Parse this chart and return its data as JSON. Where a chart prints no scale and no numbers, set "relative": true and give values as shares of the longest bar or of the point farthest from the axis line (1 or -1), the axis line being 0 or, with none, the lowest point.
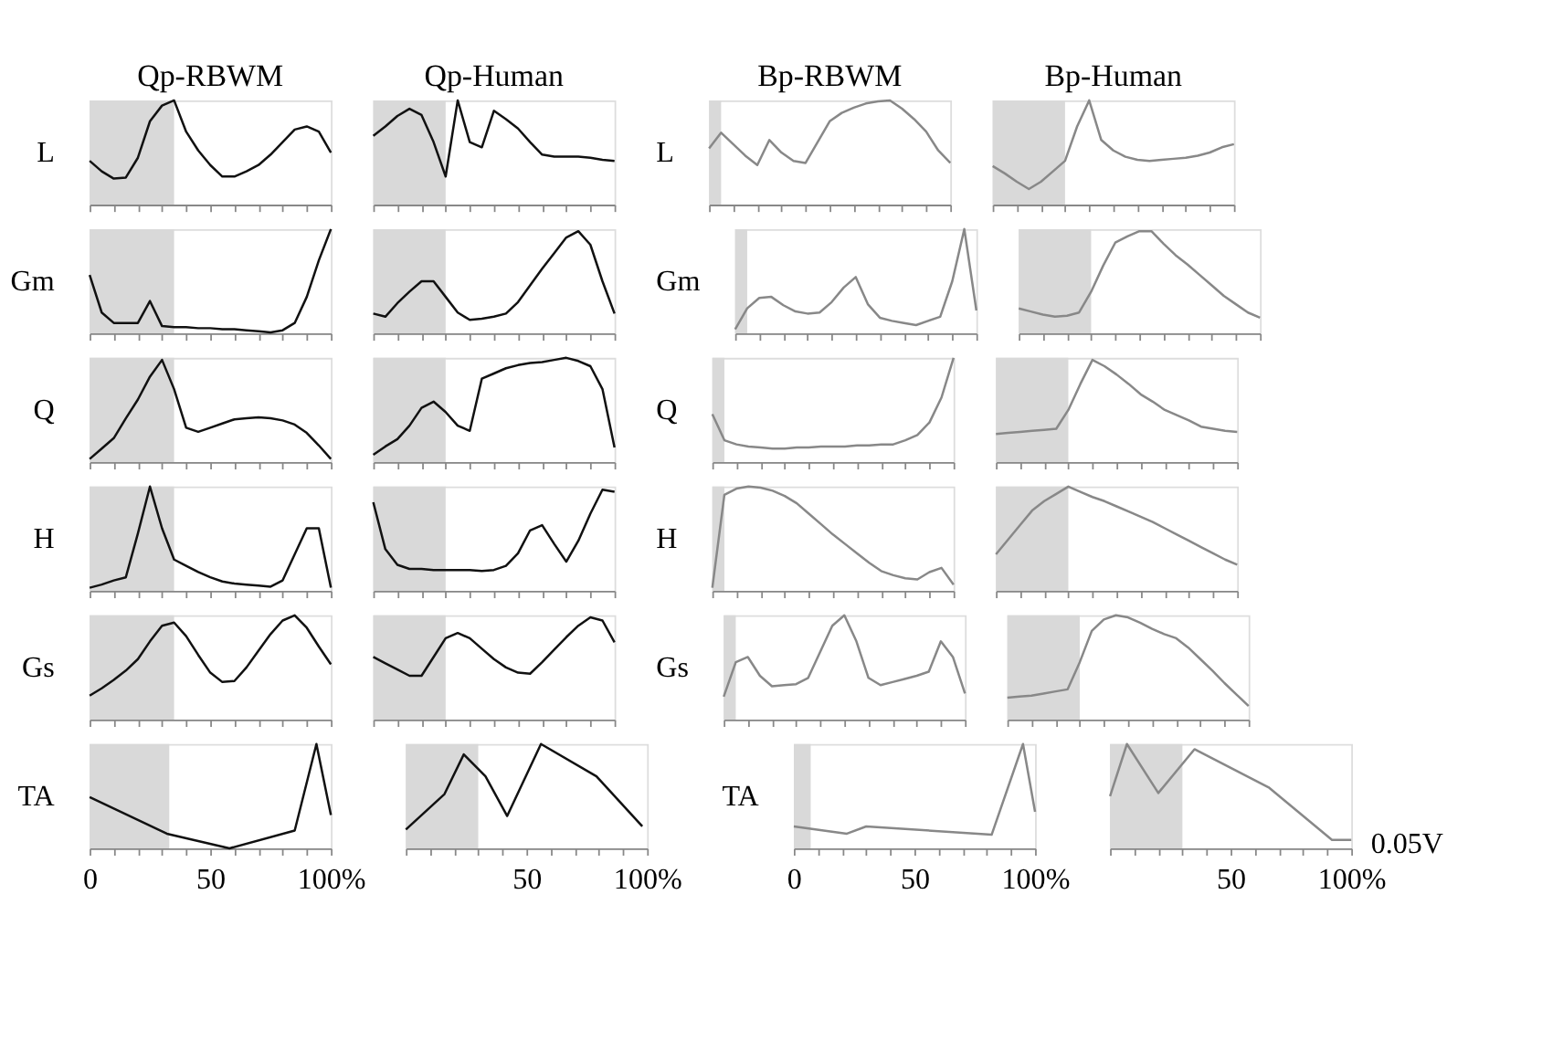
{
  "chart_data": [
    {
      "type": "line",
      "title": "Qp-RBWM",
      "ylabel": "L",
      "relative": true,
      "categories": [
        null,
        null,
        null,
        null,
        null,
        null,
        null,
        null,
        null,
        null,
        null,
        null,
        null,
        null,
        null,
        null,
        null,
        null,
        null,
        null,
        null
      ],
      "tick_labels": false,
      "series": [
        {
          "type": "area",
          "color": "#d9d9d9",
          "values": [
            1,
            1,
            1,
            1,
            1,
            1,
            1,
            1,
            null,
            null,
            null,
            null,
            null,
            null,
            null,
            null,
            null,
            null,
            null,
            null,
            null
          ]
        },
        {
          "color": "#111111",
          "values": [
            0.42,
            0.32,
            0.25,
            0.26,
            0.45,
            0.8,
            0.95,
            1,
            0.7,
            0.52,
            0.38,
            0.27,
            0.27,
            0.32,
            0.38,
            0.48,
            0.6,
            0.72,
            0.75,
            0.7,
            0.5
          ]
        }
      ]
    },
    {
      "type": "line",
      "title": "Qp-Human",
      "relative": true,
      "categories": [
        null,
        null,
        null,
        null,
        null,
        null,
        null,
        null,
        null,
        null,
        null,
        null,
        null,
        null,
        null,
        null,
        null,
        null,
        null,
        null,
        null
      ],
      "tick_labels": false,
      "series": [
        {
          "type": "area",
          "color": "#d9d9d9",
          "values": [
            1,
            1,
            1,
            1,
            1,
            1,
            1,
            null,
            null,
            null,
            null,
            null,
            null,
            null,
            null,
            null,
            null,
            null,
            null,
            null,
            null
          ]
        },
        {
          "color": "#111111",
          "values": [
            0.66,
            0.75,
            0.85,
            0.92,
            0.86,
            0.6,
            0.27,
            1,
            0.6,
            0.55,
            0.9,
            0.82,
            0.73,
            0.6,
            0.48,
            0.46,
            0.46,
            0.46,
            0.45,
            0.43,
            0.42
          ]
        }
      ]
    },
    {
      "type": "line",
      "title": "Bp-RBWM",
      "ylabel": "L",
      "relative": true,
      "categories": [
        null,
        null,
        null,
        null,
        null,
        null,
        null,
        null,
        null,
        null,
        null,
        null,
        null,
        null,
        null,
        null,
        null,
        null,
        null,
        null,
        null
      ],
      "tick_labels": false,
      "series": [
        {
          "type": "area",
          "color": "#d9d9d9",
          "values": [
            1,
            1,
            null,
            null,
            null,
            null,
            null,
            null,
            null,
            null,
            null,
            null,
            null,
            null,
            null,
            null,
            null,
            null,
            null,
            null,
            null
          ]
        },
        {
          "color": "#888888",
          "values": [
            0.54,
            0.69,
            0.58,
            0.47,
            0.38,
            0.62,
            0.5,
            0.42,
            0.4,
            0.6,
            0.8,
            0.88,
            0.93,
            0.97,
            0.99,
            1,
            0.92,
            0.82,
            0.7,
            0.52,
            0.4
          ]
        }
      ]
    },
    {
      "type": "line",
      "title": "Bp-Human",
      "relative": true,
      "categories": [
        null,
        null,
        null,
        null,
        null,
        null,
        null,
        null,
        null,
        null,
        null,
        null,
        null,
        null,
        null,
        null,
        null,
        null,
        null,
        null,
        null
      ],
      "tick_labels": false,
      "series": [
        {
          "type": "area",
          "color": "#d9d9d9",
          "values": [
            1,
            1,
            1,
            1,
            1,
            1,
            1,
            null,
            null,
            null,
            null,
            null,
            null,
            null,
            null,
            null,
            null,
            null,
            null,
            null,
            null
          ]
        },
        {
          "color": "#888888",
          "values": [
            0.37,
            0.3,
            0.22,
            0.15,
            0.22,
            0.32,
            0.42,
            0.75,
            1,
            0.62,
            0.52,
            0.46,
            0.43,
            0.42,
            0.43,
            0.44,
            0.45,
            0.47,
            0.5,
            0.55,
            0.58
          ]
        }
      ]
    },
    {
      "type": "line",
      "ylabel": "Gm",
      "relative": true,
      "categories": [
        null,
        null,
        null,
        null,
        null,
        null,
        null,
        null,
        null,
        null,
        null,
        null,
        null,
        null,
        null,
        null,
        null,
        null,
        null,
        null,
        null
      ],
      "tick_labels": false,
      "series": [
        {
          "type": "area",
          "color": "#d9d9d9",
          "values": [
            1,
            1,
            1,
            1,
            1,
            1,
            1,
            1,
            null,
            null,
            null,
            null,
            null,
            null,
            null,
            null,
            null,
            null,
            null,
            null,
            null
          ]
        },
        {
          "color": "#111111",
          "values": [
            0.56,
            0.2,
            0.1,
            0.1,
            0.1,
            0.31,
            0.07,
            0.06,
            0.06,
            0.05,
            0.05,
            0.04,
            0.04,
            0.03,
            0.02,
            0.01,
            0.03,
            0.1,
            0.35,
            0.7,
            1
          ]
        }
      ]
    },
    {
      "type": "line",
      "relative": true,
      "categories": [
        null,
        null,
        null,
        null,
        null,
        null,
        null,
        null,
        null,
        null,
        null,
        null,
        null,
        null,
        null,
        null,
        null,
        null,
        null,
        null,
        null
      ],
      "tick_labels": false,
      "series": [
        {
          "type": "area",
          "color": "#d9d9d9",
          "values": [
            1,
            1,
            1,
            1,
            1,
            1,
            1,
            null,
            null,
            null,
            null,
            null,
            null,
            null,
            null,
            null,
            null,
            null,
            null,
            null,
            null
          ]
        },
        {
          "color": "#111111",
          "values": [
            0.19,
            0.16,
            0.29,
            0.4,
            0.5,
            0.5,
            0.35,
            0.2,
            0.13,
            0.14,
            0.16,
            0.19,
            0.3,
            0.46,
            0.62,
            0.77,
            0.92,
            0.98,
            0.85,
            0.5,
            0.19
          ]
        }
      ]
    },
    {
      "type": "line",
      "ylabel": "Gm",
      "relative": true,
      "categories": [
        null,
        null,
        null,
        null,
        null,
        null,
        null,
        null,
        null,
        null,
        null,
        null,
        null,
        null,
        null,
        null,
        null,
        null,
        null,
        null,
        null
      ],
      "tick_labels": false,
      "series": [
        {
          "type": "area",
          "color": "#d9d9d9",
          "values": [
            1,
            1,
            null,
            null,
            null,
            null,
            null,
            null,
            null,
            null,
            null,
            null,
            null,
            null,
            null,
            null,
            null,
            null,
            null,
            null,
            null
          ]
        },
        {
          "color": "#888888",
          "values": [
            0.04,
            0.24,
            0.34,
            0.35,
            0.27,
            0.21,
            0.19,
            0.2,
            0.3,
            0.44,
            0.54,
            0.28,
            0.15,
            0.12,
            0.1,
            0.08,
            0.12,
            0.16,
            0.5,
            1,
            0.22
          ]
        }
      ]
    },
    {
      "type": "line",
      "relative": true,
      "categories": [
        null,
        null,
        null,
        null,
        null,
        null,
        null,
        null,
        null,
        null,
        null,
        null,
        null,
        null,
        null,
        null,
        null,
        null,
        null,
        null,
        null
      ],
      "tick_labels": false,
      "series": [
        {
          "type": "area",
          "color": "#d9d9d9",
          "values": [
            1,
            1,
            1,
            1,
            1,
            1,
            1,
            null,
            null,
            null,
            null,
            null,
            null,
            null,
            null,
            null,
            null,
            null,
            null,
            null,
            null
          ]
        },
        {
          "color": "#888888",
          "values": [
            0.24,
            0.21,
            0.18,
            0.16,
            0.17,
            0.2,
            0.4,
            0.65,
            0.87,
            0.93,
            0.98,
            0.98,
            0.86,
            0.75,
            0.66,
            0.56,
            0.46,
            0.36,
            0.28,
            0.2,
            0.15
          ]
        }
      ]
    },
    {
      "type": "line",
      "ylabel": "Q",
      "relative": true,
      "categories": [
        null,
        null,
        null,
        null,
        null,
        null,
        null,
        null,
        null,
        null,
        null,
        null,
        null,
        null,
        null,
        null,
        null,
        null,
        null,
        null,
        null
      ],
      "tick_labels": false,
      "series": [
        {
          "type": "area",
          "color": "#d9d9d9",
          "values": [
            1,
            1,
            1,
            1,
            1,
            1,
            1,
            1,
            null,
            null,
            null,
            null,
            null,
            null,
            null,
            null,
            null,
            null,
            null,
            null,
            null
          ]
        },
        {
          "color": "#111111",
          "values": [
            0.03,
            0.13,
            0.23,
            0.42,
            0.6,
            0.82,
            0.98,
            0.7,
            0.33,
            0.29,
            0.33,
            0.37,
            0.41,
            0.42,
            0.43,
            0.42,
            0.4,
            0.36,
            0.28,
            0.16,
            0.03
          ]
        }
      ]
    },
    {
      "type": "line",
      "relative": true,
      "categories": [
        null,
        null,
        null,
        null,
        null,
        null,
        null,
        null,
        null,
        null,
        null,
        null,
        null,
        null,
        null,
        null,
        null,
        null,
        null,
        null,
        null
      ],
      "tick_labels": false,
      "series": [
        {
          "type": "area",
          "color": "#d9d9d9",
          "values": [
            1,
            1,
            1,
            1,
            1,
            1,
            1,
            null,
            null,
            null,
            null,
            null,
            null,
            null,
            null,
            null,
            null,
            null,
            null,
            null,
            null
          ]
        },
        {
          "color": "#111111",
          "values": [
            0.07,
            0.15,
            0.22,
            0.35,
            0.52,
            0.58,
            0.48,
            0.35,
            0.3,
            0.8,
            0.85,
            0.9,
            0.93,
            0.95,
            0.96,
            0.98,
            1,
            0.97,
            0.92,
            0.7,
            0.14
          ]
        }
      ]
    },
    {
      "type": "line",
      "ylabel": "Q",
      "relative": true,
      "categories": [
        null,
        null,
        null,
        null,
        null,
        null,
        null,
        null,
        null,
        null,
        null,
        null,
        null,
        null,
        null,
        null,
        null,
        null,
        null,
        null,
        null
      ],
      "tick_labels": false,
      "series": [
        {
          "type": "area",
          "color": "#d9d9d9",
          "values": [
            1,
            1,
            null,
            null,
            null,
            null,
            null,
            null,
            null,
            null,
            null,
            null,
            null,
            null,
            null,
            null,
            null,
            null,
            null,
            null,
            null
          ]
        },
        {
          "color": "#888888",
          "values": [
            0.46,
            0.21,
            0.17,
            0.15,
            0.14,
            0.13,
            0.13,
            0.14,
            0.14,
            0.15,
            0.15,
            0.15,
            0.16,
            0.16,
            0.17,
            0.17,
            0.21,
            0.26,
            0.38,
            0.62,
            1
          ]
        }
      ]
    },
    {
      "type": "line",
      "relative": true,
      "categories": [
        null,
        null,
        null,
        null,
        null,
        null,
        null,
        null,
        null,
        null,
        null,
        null,
        null,
        null,
        null,
        null,
        null,
        null,
        null,
        null,
        null
      ],
      "tick_labels": false,
      "series": [
        {
          "type": "area",
          "color": "#d9d9d9",
          "values": [
            1,
            1,
            1,
            1,
            1,
            1,
            1,
            null,
            null,
            null,
            null,
            null,
            null,
            null,
            null,
            null,
            null,
            null,
            null,
            null,
            null
          ]
        },
        {
          "color": "#888888",
          "values": [
            0.27,
            0.28,
            0.29,
            0.3,
            0.31,
            0.32,
            0.5,
            0.75,
            0.98,
            0.92,
            0.84,
            0.75,
            0.65,
            0.58,
            0.5,
            0.45,
            0.4,
            0.34,
            0.32,
            0.3,
            0.29
          ]
        }
      ]
    },
    {
      "type": "line",
      "ylabel": "H",
      "relative": true,
      "categories": [
        null,
        null,
        null,
        null,
        null,
        null,
        null,
        null,
        null,
        null,
        null,
        null,
        null,
        null,
        null,
        null,
        null,
        null,
        null,
        null,
        null
      ],
      "tick_labels": false,
      "series": [
        {
          "type": "area",
          "color": "#d9d9d9",
          "values": [
            1,
            1,
            1,
            1,
            1,
            1,
            1,
            1,
            null,
            null,
            null,
            null,
            null,
            null,
            null,
            null,
            null,
            null,
            null,
            null,
            null
          ]
        },
        {
          "color": "#111111",
          "values": [
            0.03,
            0.06,
            0.1,
            0.13,
            0.55,
            1,
            0.6,
            0.3,
            0.24,
            0.18,
            0.13,
            0.09,
            0.07,
            0.06,
            0.05,
            0.04,
            0.1,
            0.35,
            0.6,
            0.6,
            0.03
          ]
        }
      ]
    },
    {
      "type": "line",
      "relative": true,
      "categories": [
        null,
        null,
        null,
        null,
        null,
        null,
        null,
        null,
        null,
        null,
        null,
        null,
        null,
        null,
        null,
        null,
        null,
        null,
        null,
        null,
        null
      ],
      "tick_labels": false,
      "series": [
        {
          "type": "area",
          "color": "#d9d9d9",
          "values": [
            1,
            1,
            1,
            1,
            1,
            1,
            1,
            null,
            null,
            null,
            null,
            null,
            null,
            null,
            null,
            null,
            null,
            null,
            null,
            null,
            null
          ]
        },
        {
          "color": "#111111",
          "values": [
            0.85,
            0.4,
            0.25,
            0.21,
            0.21,
            0.2,
            0.2,
            0.2,
            0.2,
            0.19,
            0.2,
            0.24,
            0.36,
            0.58,
            0.63,
            0.45,
            0.28,
            0.48,
            0.74,
            0.97,
            0.95
          ]
        }
      ]
    },
    {
      "type": "line",
      "ylabel": "H",
      "relative": true,
      "categories": [
        null,
        null,
        null,
        null,
        null,
        null,
        null,
        null,
        null,
        null,
        null,
        null,
        null,
        null,
        null,
        null,
        null,
        null,
        null,
        null,
        null
      ],
      "tick_labels": false,
      "series": [
        {
          "type": "area",
          "color": "#d9d9d9",
          "values": [
            1,
            1,
            null,
            null,
            null,
            null,
            null,
            null,
            null,
            null,
            null,
            null,
            null,
            null,
            null,
            null,
            null,
            null,
            null,
            null,
            null
          ]
        },
        {
          "color": "#888888",
          "values": [
            0.03,
            0.92,
            0.98,
            1,
            0.99,
            0.96,
            0.91,
            0.84,
            0.74,
            0.64,
            0.54,
            0.45,
            0.36,
            0.27,
            0.19,
            0.15,
            0.12,
            0.11,
            0.18,
            0.22,
            0.06
          ]
        }
      ]
    },
    {
      "type": "line",
      "relative": true,
      "categories": [
        null,
        null,
        null,
        null,
        null,
        null,
        null,
        null,
        null,
        null,
        null,
        null,
        null,
        null,
        null,
        null,
        null,
        null,
        null,
        null,
        null
      ],
      "tick_labels": false,
      "series": [
        {
          "type": "area",
          "color": "#d9d9d9",
          "values": [
            1,
            1,
            1,
            1,
            1,
            1,
            1,
            null,
            null,
            null,
            null,
            null,
            null,
            null,
            null,
            null,
            null,
            null,
            null,
            null,
            null
          ]
        },
        {
          "color": "#888888",
          "values": [
            0.35,
            0.49,
            0.63,
            0.77,
            0.86,
            0.93,
            1,
            0.95,
            0.9,
            0.86,
            0.81,
            0.76,
            0.71,
            0.66,
            0.6,
            0.54,
            0.48,
            0.42,
            0.36,
            0.3,
            0.25
          ]
        }
      ]
    },
    {
      "type": "line",
      "ylabel": "Gs",
      "relative": true,
      "categories": [
        null,
        null,
        null,
        null,
        null,
        null,
        null,
        null,
        null,
        null,
        null,
        null,
        null,
        null,
        null,
        null,
        null,
        null,
        null,
        null,
        null
      ],
      "tick_labels": false,
      "series": [
        {
          "type": "area",
          "color": "#d9d9d9",
          "values": [
            1,
            1,
            1,
            1,
            1,
            1,
            1,
            1,
            null,
            null,
            null,
            null,
            null,
            null,
            null,
            null,
            null,
            null,
            null,
            null,
            null
          ]
        },
        {
          "color": "#111111",
          "values": [
            0.23,
            0.3,
            0.38,
            0.47,
            0.58,
            0.75,
            0.9,
            0.93,
            0.8,
            0.62,
            0.45,
            0.36,
            0.37,
            0.5,
            0.66,
            0.82,
            0.95,
            1,
            0.88,
            0.7,
            0.53
          ]
        }
      ]
    },
    {
      "type": "line",
      "relative": true,
      "categories": [
        null,
        null,
        null,
        null,
        null,
        null,
        null,
        null,
        null,
        null,
        null,
        null,
        null,
        null,
        null,
        null,
        null,
        null,
        null,
        null,
        null
      ],
      "tick_labels": false,
      "series": [
        {
          "type": "area",
          "color": "#d9d9d9",
          "values": [
            1,
            1,
            1,
            1,
            1,
            1,
            1,
            null,
            null,
            null,
            null,
            null,
            null,
            null,
            null,
            null,
            null,
            null,
            null,
            null,
            null
          ]
        },
        {
          "color": "#111111",
          "values": [
            0.6,
            0.54,
            0.48,
            0.42,
            0.42,
            0.6,
            0.78,
            0.83,
            0.78,
            0.68,
            0.58,
            0.5,
            0.45,
            0.44,
            0.55,
            0.67,
            0.79,
            0.9,
            0.98,
            0.95,
            0.74
          ]
        }
      ]
    },
    {
      "type": "line",
      "ylabel": "Gs",
      "relative": true,
      "categories": [
        null,
        null,
        null,
        null,
        null,
        null,
        null,
        null,
        null,
        null,
        null,
        null,
        null,
        null,
        null,
        null,
        null,
        null,
        null,
        null,
        null
      ],
      "tick_labels": false,
      "series": [
        {
          "type": "area",
          "color": "#d9d9d9",
          "values": [
            1,
            1,
            null,
            null,
            null,
            null,
            null,
            null,
            null,
            null,
            null,
            null,
            null,
            null,
            null,
            null,
            null,
            null,
            null,
            null,
            null
          ]
        },
        {
          "color": "#888888",
          "values": [
            0.22,
            0.55,
            0.6,
            0.42,
            0.32,
            0.33,
            0.34,
            0.4,
            0.65,
            0.9,
            1,
            0.75,
            0.4,
            0.33,
            0.36,
            0.39,
            0.42,
            0.46,
            0.75,
            0.6,
            0.25
          ]
        }
      ]
    },
    {
      "type": "line",
      "relative": true,
      "categories": [
        null,
        null,
        null,
        null,
        null,
        null,
        null,
        null,
        null,
        null,
        null,
        null,
        null,
        null,
        null,
        null,
        null,
        null,
        null,
        null,
        null
      ],
      "tick_labels": false,
      "series": [
        {
          "type": "area",
          "color": "#d9d9d9",
          "values": [
            1,
            1,
            1,
            1,
            1,
            1,
            1,
            null,
            null,
            null,
            null,
            null,
            null,
            null,
            null,
            null,
            null,
            null,
            null,
            null,
            null
          ]
        },
        {
          "color": "#888888",
          "values": [
            0.21,
            0.22,
            0.23,
            0.25,
            0.27,
            0.29,
            0.55,
            0.85,
            0.96,
            1,
            0.98,
            0.93,
            0.87,
            0.82,
            0.78,
            0.69,
            0.58,
            0.47,
            0.35,
            0.24,
            0.13
          ]
        }
      ]
    },
    {
      "type": "line",
      "ylabel": "TA",
      "relative": true,
      "color": "#111111",
      "x": [
        0,
        32,
        58,
        85,
        94,
        100
      ],
      "values": [
        0.49,
        0.14,
        0,
        0.17,
        1,
        0.32
      ],
      "xlim": [
        0,
        100
      ],
      "xticks": [
        0,
        {
          "value": 10,
          "label": null
        },
        {
          "value": 20,
          "label": null
        },
        {
          "value": 30,
          "label": null
        },
        {
          "value": 40,
          "label": null
        },
        50,
        {
          "value": 60,
          "label": null
        },
        {
          "value": 70,
          "label": null
        },
        {
          "value": 80,
          "label": null
        },
        {
          "value": 90,
          "label": null
        },
        {
          "value": 100,
          "label": "100%"
        }
      ],
      "bands": [
        {
          "axis": "x",
          "from": 0,
          "to": 33,
          "color": "#d9d9d9"
        }
      ],
      "tick_labels": "x"
    },
    {
      "type": "line",
      "relative": true,
      "color": "#111111",
      "x": [
        0,
        16,
        24,
        33,
        42,
        56,
        79,
        98
      ],
      "values": [
        0.18,
        0.52,
        0.9,
        0.69,
        0.31,
        1,
        0.69,
        0.21
      ],
      "xlim": [
        0,
        100
      ],
      "xticks": [
        {
          "value": 0,
          "label": null
        },
        {
          "value": 10,
          "label": null
        },
        {
          "value": 20,
          "label": null
        },
        {
          "value": 30,
          "label": null
        },
        {
          "value": 40,
          "label": null
        },
        50,
        {
          "value": 60,
          "label": null
        },
        {
          "value": 70,
          "label": null
        },
        {
          "value": 80,
          "label": null
        },
        {
          "value": 90,
          "label": null
        },
        {
          "value": 100,
          "label": "100%"
        }
      ],
      "bands": [
        {
          "axis": "x",
          "from": 0,
          "to": 30,
          "color": "#d9d9d9"
        }
      ],
      "tick_labels": "x"
    },
    {
      "type": "line",
      "ylabel": "TA",
      "relative": true,
      "color": "#888888",
      "x": [
        0,
        22,
        30,
        82,
        95,
        100
      ],
      "values": [
        0.21,
        0.14,
        0.21,
        0.13,
        1,
        0.35
      ],
      "xlim": [
        0,
        100
      ],
      "xticks": [
        0,
        {
          "value": 10,
          "label": null
        },
        {
          "value": 20,
          "label": null
        },
        {
          "value": 30,
          "label": null
        },
        {
          "value": 40,
          "label": null
        },
        50,
        {
          "value": 60,
          "label": null
        },
        {
          "value": 70,
          "label": null
        },
        {
          "value": 80,
          "label": null
        },
        {
          "value": 90,
          "label": null
        },
        {
          "value": 100,
          "label": "100%"
        }
      ],
      "bands": [
        {
          "axis": "x",
          "from": 0,
          "to": 7,
          "color": "#d9d9d9"
        }
      ],
      "tick_labels": "x"
    },
    {
      "type": "line",
      "relative": true,
      "color": "#888888",
      "x": [
        0,
        7,
        20,
        35,
        66,
        92,
        100
      ],
      "values": [
        0.5,
        1,
        0.53,
        0.95,
        0.58,
        0.08,
        0.08
      ],
      "xlim": [
        0,
        100
      ],
      "xticks": [
        {
          "value": 0,
          "label": null
        },
        {
          "value": 10,
          "label": null
        },
        {
          "value": 20,
          "label": null
        },
        {
          "value": 30,
          "label": null
        },
        {
          "value": 40,
          "label": null
        },
        50,
        {
          "value": 60,
          "label": null
        },
        {
          "value": 70,
          "label": null
        },
        {
          "value": 80,
          "label": null
        },
        {
          "value": 90,
          "label": null
        },
        {
          "value": 100,
          "label": "100%"
        }
      ],
      "bands": [
        {
          "axis": "x",
          "from": 0,
          "to": 30,
          "color": "#d9d9d9"
        }
      ],
      "tick_labels": "x",
      "annotations": [
        "0.05V"
      ]
    }
  ]
}
